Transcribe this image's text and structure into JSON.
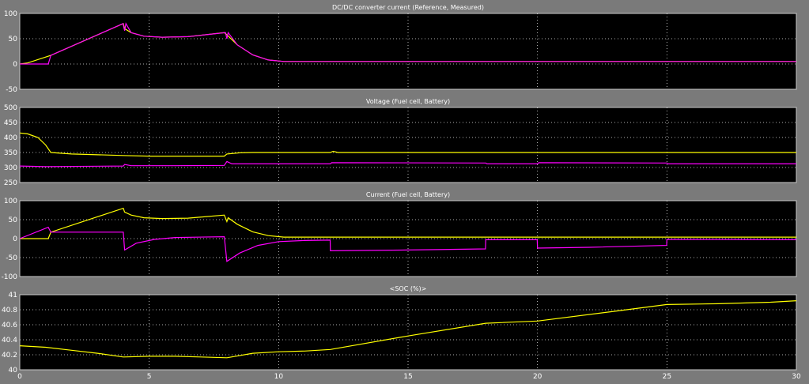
{
  "figure": {
    "background": "#7a7a7a",
    "axes_background": "#000000",
    "grid": true
  },
  "chart_data": [
    {
      "type": "line",
      "title": "DC/DC converter current (Reference, Measured)",
      "ylim": [
        -50,
        100
      ],
      "yticks": [
        "-50",
        "0",
        "50",
        "100"
      ],
      "xlim": [
        0,
        30
      ],
      "series": [
        {
          "color": "#ffff00",
          "points": [
            [
              0,
              0
            ],
            [
              0.3,
              2
            ],
            [
              1.2,
              17
            ],
            [
              4,
              80
            ],
            [
              4.05,
              70
            ],
            [
              4.3,
              62
            ],
            [
              4.8,
              55
            ],
            [
              5.5,
              53
            ],
            [
              6.5,
              54
            ],
            [
              7.9,
              62
            ],
            [
              8.0,
              58
            ],
            [
              8.4,
              38
            ],
            [
              9.0,
              18
            ],
            [
              9.6,
              8
            ],
            [
              10.2,
              5
            ],
            [
              12,
              5
            ],
            [
              18,
              5
            ],
            [
              20,
              5
            ],
            [
              25,
              5
            ],
            [
              30,
              5
            ]
          ]
        },
        {
          "color": "#ff00ff",
          "points": [
            [
              0,
              0
            ],
            [
              1.1,
              0
            ],
            [
              1.2,
              17
            ],
            [
              3.99,
              80
            ],
            [
              4.02,
              72
            ],
            [
              4.05,
              66
            ],
            [
              4.1,
              80
            ],
            [
              4.3,
              62
            ],
            [
              4.8,
              55
            ],
            [
              5.5,
              53
            ],
            [
              6.5,
              54
            ],
            [
              7.95,
              62
            ],
            [
              8.0,
              50
            ],
            [
              8.05,
              62
            ],
            [
              8.4,
              38
            ],
            [
              9.0,
              18
            ],
            [
              9.6,
              8
            ],
            [
              10.2,
              5
            ],
            [
              12,
              5
            ],
            [
              18,
              5
            ],
            [
              20,
              5
            ],
            [
              25,
              5
            ],
            [
              30,
              5
            ]
          ]
        }
      ]
    },
    {
      "type": "line",
      "title": "Voltage (Fuel cell, Battery)",
      "ylim": [
        250,
        500
      ],
      "yticks": [
        "250",
        "300",
        "350",
        "400",
        "450",
        "500"
      ],
      "xlim": [
        0,
        30
      ],
      "series": [
        {
          "color": "#ffff00",
          "points": [
            [
              0,
              415
            ],
            [
              0.3,
              412
            ],
            [
              0.7,
              400
            ],
            [
              1.0,
              375
            ],
            [
              1.2,
              350
            ],
            [
              2,
              345
            ],
            [
              4,
              340
            ],
            [
              5,
              338
            ],
            [
              6,
              338
            ],
            [
              7.9,
              338
            ],
            [
              8.0,
              345
            ],
            [
              8.5,
              349
            ],
            [
              9,
              350
            ],
            [
              12,
              350
            ],
            [
              12.1,
              354
            ],
            [
              12.3,
              350
            ],
            [
              18,
              350
            ],
            [
              20,
              350
            ],
            [
              25,
              350
            ],
            [
              30,
              350
            ]
          ]
        },
        {
          "color": "#ff00ff",
          "points": [
            [
              0,
              305
            ],
            [
              1,
              303
            ],
            [
              4,
              305
            ],
            [
              4.05,
              310
            ],
            [
              4.3,
              306
            ],
            [
              6,
              306
            ],
            [
              7.9,
              307
            ],
            [
              8.0,
              320
            ],
            [
              8.2,
              312
            ],
            [
              10,
              312
            ],
            [
              12,
              312
            ],
            [
              12.05,
              316
            ],
            [
              18,
              315
            ],
            [
              18.05,
              312
            ],
            [
              20,
              312
            ],
            [
              20.05,
              316
            ],
            [
              25,
              315
            ],
            [
              25.05,
              312
            ],
            [
              30,
              312
            ]
          ]
        }
      ]
    },
    {
      "type": "line",
      "title": "Current (Fuel cell, Battery)",
      "ylim": [
        -100,
        100
      ],
      "yticks": [
        "-100",
        "-50",
        "0",
        "50",
        "100"
      ],
      "xlim": [
        0,
        30
      ],
      "series": [
        {
          "color": "#ffff00",
          "points": [
            [
              0,
              0
            ],
            [
              1.1,
              0
            ],
            [
              1.2,
              17
            ],
            [
              4,
              80
            ],
            [
              4.05,
              70
            ],
            [
              4.3,
              62
            ],
            [
              4.8,
              55
            ],
            [
              5.5,
              53
            ],
            [
              6.5,
              54
            ],
            [
              7.9,
              62
            ],
            [
              8.0,
              45
            ],
            [
              8.05,
              55
            ],
            [
              8.4,
              38
            ],
            [
              9.0,
              18
            ],
            [
              9.6,
              8
            ],
            [
              10.2,
              4
            ],
            [
              12,
              4
            ],
            [
              18,
              4
            ],
            [
              20,
              4
            ],
            [
              25,
              4
            ],
            [
              30,
              4
            ]
          ]
        },
        {
          "color": "#ff00ff",
          "points": [
            [
              0,
              0
            ],
            [
              1.1,
              30
            ],
            [
              1.2,
              17
            ],
            [
              4.0,
              17
            ],
            [
              4.05,
              -30
            ],
            [
              4.5,
              -12
            ],
            [
              5.2,
              -2
            ],
            [
              6,
              3
            ],
            [
              7.9,
              5
            ],
            [
              8.0,
              -60
            ],
            [
              8.5,
              -38
            ],
            [
              9.2,
              -18
            ],
            [
              10,
              -8
            ],
            [
              11,
              -5
            ],
            [
              11.99,
              -4
            ],
            [
              12.0,
              -32
            ],
            [
              15,
              -30
            ],
            [
              17.99,
              -27
            ],
            [
              18.0,
              -3
            ],
            [
              19.99,
              -3
            ],
            [
              20.0,
              -25
            ],
            [
              22,
              -23
            ],
            [
              24.99,
              -18
            ],
            [
              25.0,
              -2
            ],
            [
              27,
              -2
            ],
            [
              30,
              -3
            ]
          ]
        }
      ]
    },
    {
      "type": "line",
      "title": "<SOC (%)>",
      "ylim": [
        40.0,
        41.0
      ],
      "yticks": [
        "40",
        "40.2",
        "40.4",
        "40.6",
        "40.8",
        "41"
      ],
      "xlim": [
        0,
        30
      ],
      "xticks": [
        "0",
        "5",
        "10",
        "15",
        "20",
        "25",
        "30"
      ],
      "series": [
        {
          "color": "#ffff00",
          "points": [
            [
              0,
              40.32
            ],
            [
              1,
              40.3
            ],
            [
              2,
              40.26
            ],
            [
              3,
              40.22
            ],
            [
              4,
              40.17
            ],
            [
              5,
              40.18
            ],
            [
              6,
              40.18
            ],
            [
              7,
              40.17
            ],
            [
              8,
              40.16
            ],
            [
              9,
              40.22
            ],
            [
              10,
              40.24
            ],
            [
              11,
              40.25
            ],
            [
              12,
              40.27
            ],
            [
              15,
              40.45
            ],
            [
              18,
              40.62
            ],
            [
              20,
              40.65
            ],
            [
              23,
              40.78
            ],
            [
              25,
              40.87
            ],
            [
              27,
              40.88
            ],
            [
              29,
              40.9
            ],
            [
              30,
              40.92
            ]
          ]
        }
      ]
    }
  ]
}
